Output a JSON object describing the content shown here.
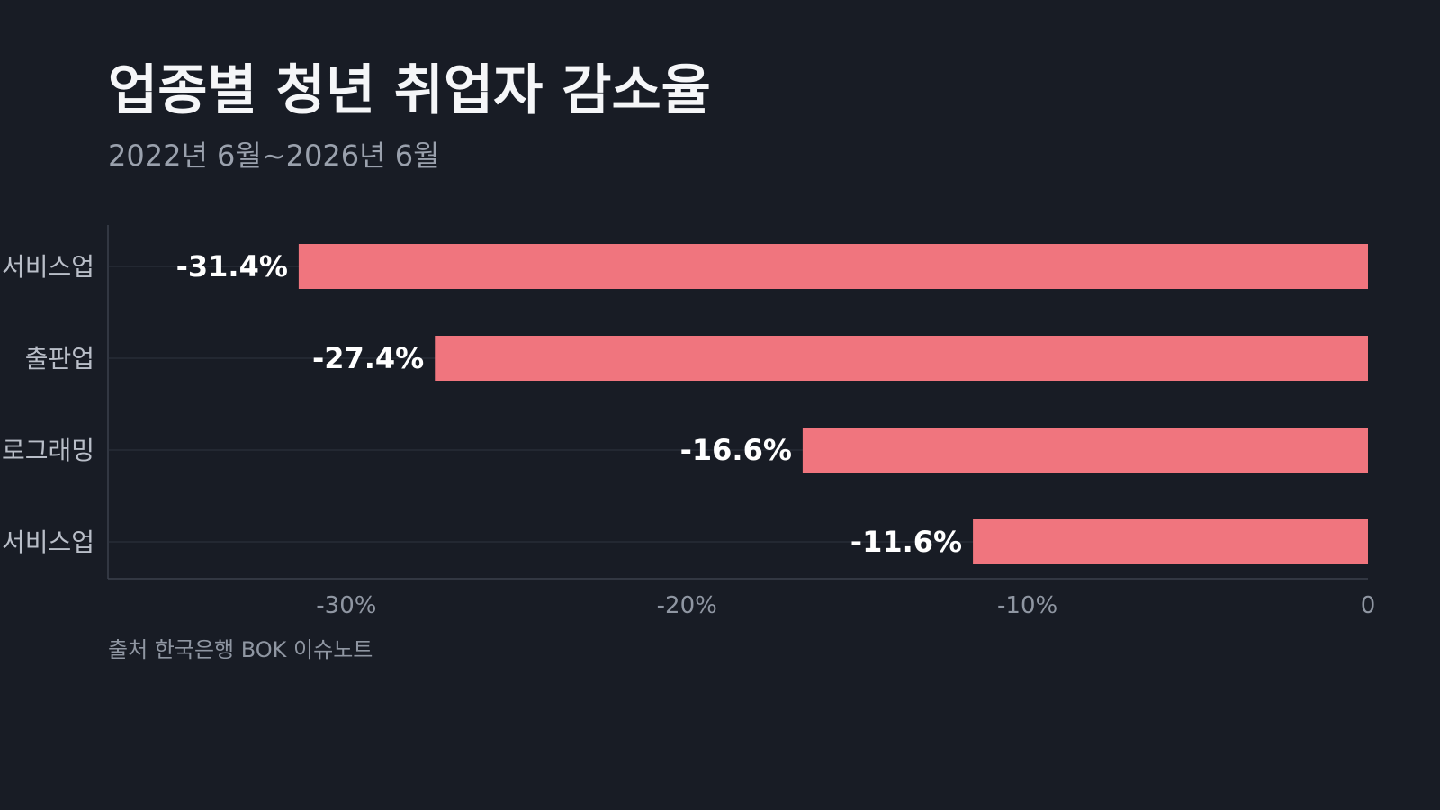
{
  "header": {
    "title": "업종별 청년 취업자 감소율",
    "subtitle": "2022년 6월~2026년 6월"
  },
  "footer": {
    "source": "출처 한국은행 BOK 이슈노트"
  },
  "colors": {
    "background": "#181c25",
    "bar": "#f0757e",
    "grid": "#2e3440",
    "axis": "#3a404c"
  },
  "chart_data": {
    "type": "bar",
    "orientation": "horizontal",
    "title": "업종별 청년 취업자 감소율",
    "subtitle": "2022년 6월~2026년 6월",
    "categories": [
      "서비스업",
      "출판업",
      "로그래밍",
      "서비스업"
    ],
    "values": [
      -31.4,
      -27.4,
      -16.6,
      -11.6
    ],
    "value_labels": [
      "-31.4%",
      "-27.4%",
      "-16.6%",
      "-11.6%"
    ],
    "xlim": [
      -37,
      0
    ],
    "xticks": [
      -30,
      -20,
      -10,
      0
    ],
    "xtick_labels": [
      "-30%",
      "-20%",
      "-10%",
      "0"
    ],
    "grid": false,
    "legend": "none"
  }
}
